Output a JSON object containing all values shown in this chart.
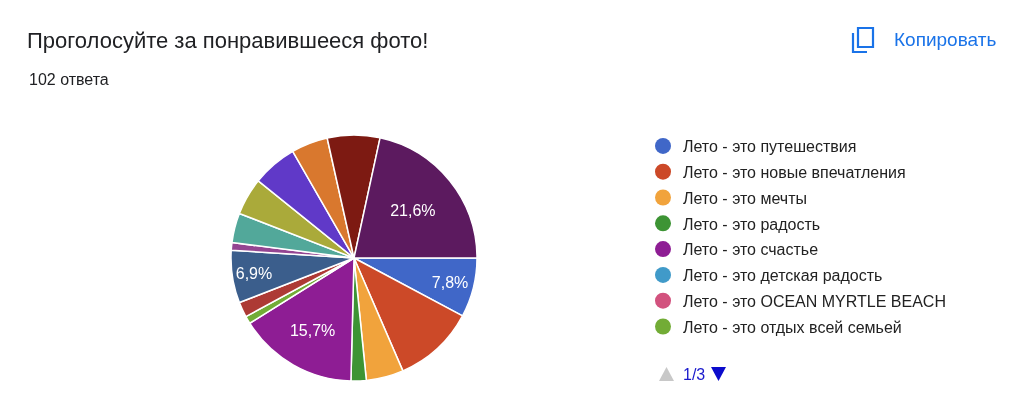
{
  "chart_data": {
    "type": "pie",
    "title": "Проголосуйте за понравившееся фото!",
    "subtitle": "102 ответа",
    "categories": [
      "Лето - это путешествия",
      "Лето - это новые впечатления",
      "Лето - это мечты",
      "Лето - это радость",
      "Лето - это счастье",
      "Лето - это детская радость",
      "Лето - это OCEAN MYRTLE BEACH",
      "Лето - это отдых всей семьей",
      null,
      null,
      null,
      null,
      null,
      null,
      null,
      null,
      null
    ],
    "values": [
      7.8,
      10.7,
      4.9,
      2.0,
      15.7,
      0,
      0,
      1.0,
      2.0,
      6.9,
      1.0,
      3.9,
      4.9,
      5.9,
      4.8,
      6.9,
      21.6
    ],
    "colors": [
      "#4067c8",
      "#cc4928",
      "#f1a33c",
      "#3d9434",
      "#8e1d94",
      "#409ac9",
      "#d2527e",
      "#72ac36",
      "#ad3a35",
      "#3b5e8c",
      "#944592",
      "#52a89a",
      "#aaaa3a",
      "#6039c8",
      "#d9782e",
      "#7d1a12",
      "#5c1a5f"
    ],
    "value_labels": [
      "7,8%",
      null,
      null,
      null,
      "15,7%",
      null,
      null,
      null,
      null,
      "6,9%",
      null,
      null,
      null,
      null,
      null,
      null,
      "21,6%"
    ],
    "legend": "right",
    "annotations": [
      "Копировать",
      "1/3"
    ]
  }
}
